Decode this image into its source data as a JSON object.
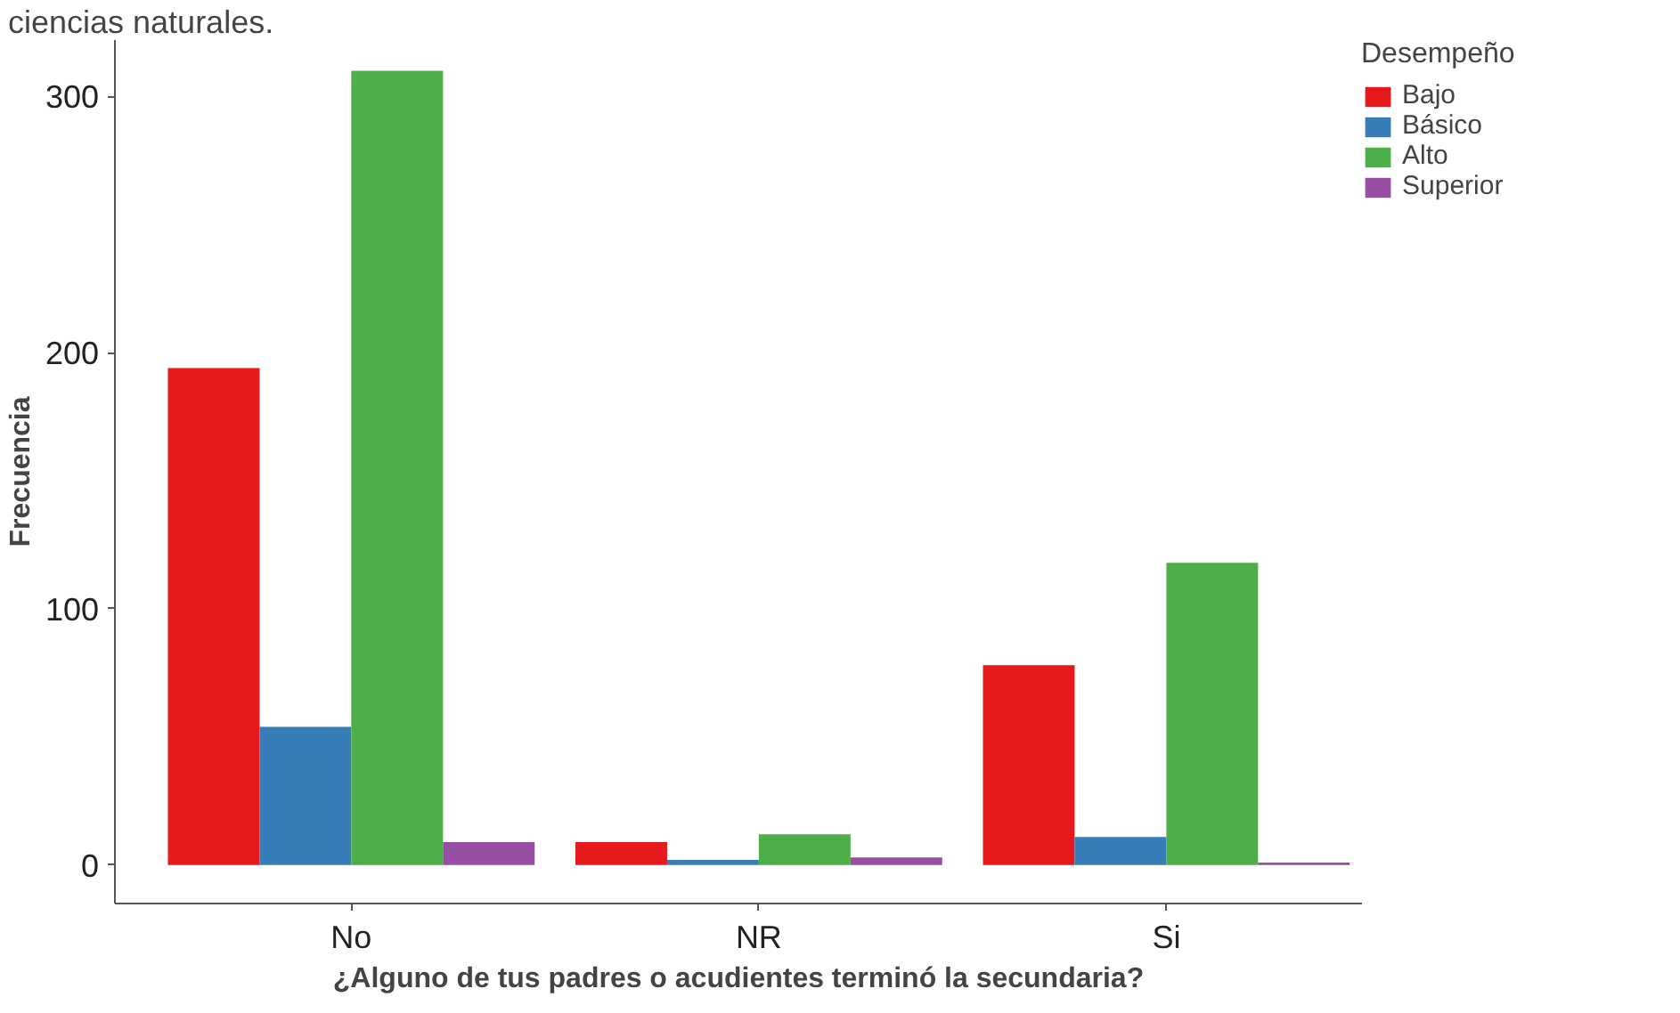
{
  "chart_data": {
    "type": "bar",
    "title": "ciencias naturales.",
    "xlabel": "¿Alguno de tus padres o acudientes terminó la secundaria?",
    "ylabel": "Frecuencia",
    "legend_title": "Desempeño",
    "categories": [
      "No",
      "NR",
      "Si"
    ],
    "series": [
      {
        "name": "Bajo",
        "color": "#e41a1c",
        "values": [
          194,
          9,
          78
        ]
      },
      {
        "name": "Básico",
        "color": "#377eb8",
        "values": [
          54,
          2,
          11
        ]
      },
      {
        "name": "Alto",
        "color": "#4daf4a",
        "values": [
          310,
          12,
          118
        ]
      },
      {
        "name": "Superior",
        "color": "#984ea3",
        "values": [
          9,
          3,
          1
        ]
      }
    ],
    "ylim": [
      -15,
      322
    ],
    "yticks": [
      0,
      100,
      200,
      300
    ],
    "grid": false,
    "legend": "right"
  }
}
